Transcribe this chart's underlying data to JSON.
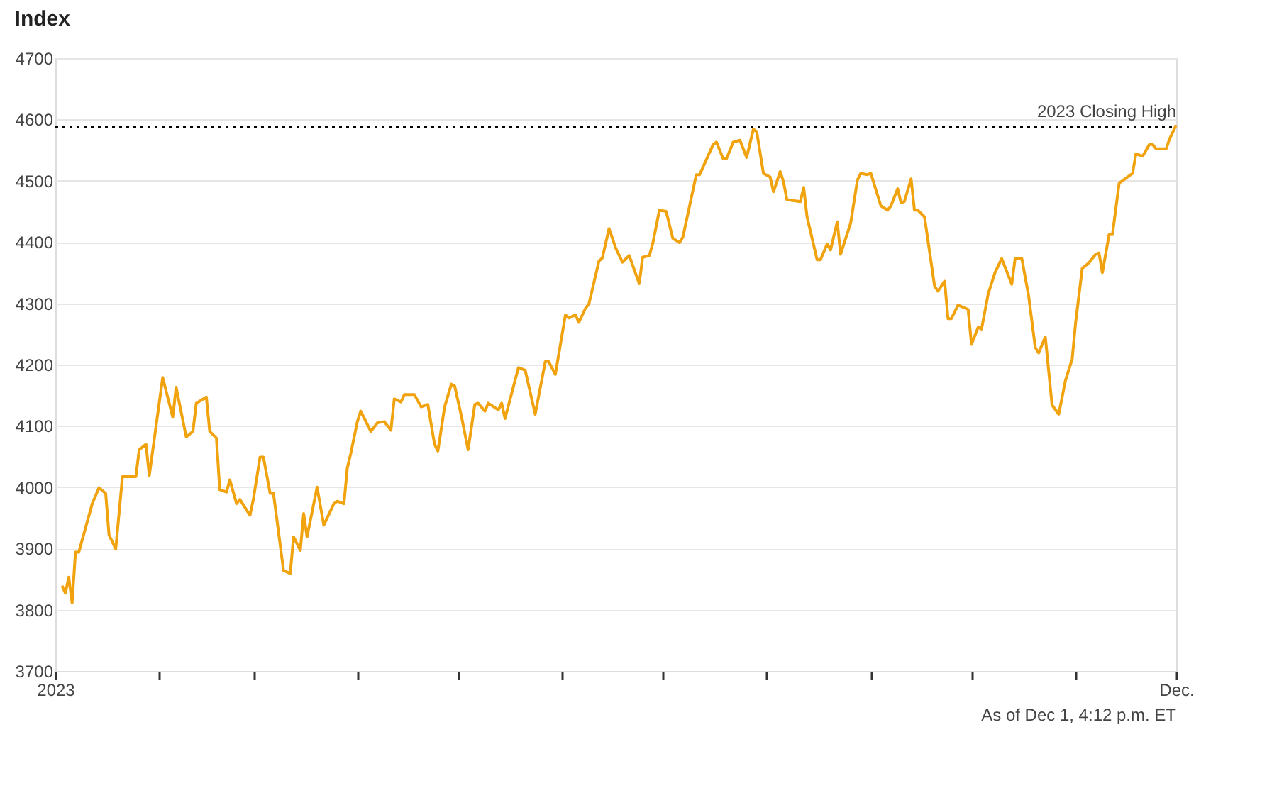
{
  "chart_data": {
    "type": "line",
    "title": "Index",
    "x": [
      "2023-01-03",
      "2023-01-04",
      "2023-01-05",
      "2023-01-06",
      "2023-01-07",
      "2023-01-08",
      "2023-01-12",
      "2023-01-14",
      "2023-01-16",
      "2023-01-17",
      "2023-01-19",
      "2023-01-21",
      "2023-01-25",
      "2023-01-26",
      "2023-01-28",
      "2023-01-29",
      "2023-02-02",
      "2023-02-05",
      "2023-02-06",
      "2023-02-09",
      "2023-02-11",
      "2023-02-12",
      "2023-02-15",
      "2023-02-16",
      "2023-02-18",
      "2023-02-19",
      "2023-02-21",
      "2023-02-22",
      "2023-02-24",
      "2023-02-25",
      "2023-02-28",
      "2023-03-01",
      "2023-03-03",
      "2023-03-04",
      "2023-03-06",
      "2023-03-07",
      "2023-03-10",
      "2023-03-12",
      "2023-03-13",
      "2023-03-15",
      "2023-03-16",
      "2023-03-17",
      "2023-03-20",
      "2023-03-22",
      "2023-03-25",
      "2023-03-26",
      "2023-03-28",
      "2023-03-29",
      "2023-03-30",
      "2023-04-01",
      "2023-04-02",
      "2023-04-05",
      "2023-04-07",
      "2023-04-09",
      "2023-04-11",
      "2023-04-12",
      "2023-04-14",
      "2023-04-15",
      "2023-04-18",
      "2023-04-20",
      "2023-04-22",
      "2023-04-24",
      "2023-04-25",
      "2023-04-27",
      "2023-04-29",
      "2023-04-30",
      "2023-05-02",
      "2023-05-04",
      "2023-05-06",
      "2023-05-07",
      "2023-05-09",
      "2023-05-10",
      "2023-05-13",
      "2023-05-14",
      "2023-05-15",
      "2023-05-19",
      "2023-05-21",
      "2023-05-24",
      "2023-05-27",
      "2023-05-28",
      "2023-05-30",
      "2023-06-02",
      "2023-06-03",
      "2023-06-05",
      "2023-06-06",
      "2023-06-08",
      "2023-06-09",
      "2023-06-12",
      "2023-06-13",
      "2023-06-15",
      "2023-06-17",
      "2023-06-19",
      "2023-06-21",
      "2023-06-24",
      "2023-06-25",
      "2023-06-27",
      "2023-06-28",
      "2023-06-30",
      "2023-07-02",
      "2023-07-04",
      "2023-07-06",
      "2023-07-07",
      "2023-07-11",
      "2023-07-12",
      "2023-07-16",
      "2023-07-17",
      "2023-07-19",
      "2023-07-20",
      "2023-07-22",
      "2023-07-24",
      "2023-07-26",
      "2023-07-28",
      "2023-07-29",
      "2023-07-31",
      "2023-08-02",
      "2023-08-03",
      "2023-08-05",
      "2023-08-06",
      "2023-08-07",
      "2023-08-11",
      "2023-08-12",
      "2023-08-13",
      "2023-08-16",
      "2023-08-17",
      "2023-08-19",
      "2023-08-20",
      "2023-08-22",
      "2023-08-23",
      "2023-08-26",
      "2023-08-28",
      "2023-08-29",
      "2023-08-31",
      "2023-09-01",
      "2023-09-04",
      "2023-09-06",
      "2023-09-07",
      "2023-09-09",
      "2023-09-10",
      "2023-09-11",
      "2023-09-13",
      "2023-09-14",
      "2023-09-15",
      "2023-09-17",
      "2023-09-20",
      "2023-09-21",
      "2023-09-23",
      "2023-09-24",
      "2023-09-25",
      "2023-09-27",
      "2023-09-30",
      "2023-10-01",
      "2023-10-03",
      "2023-10-04",
      "2023-10-06",
      "2023-10-08",
      "2023-10-10",
      "2023-10-13",
      "2023-10-14",
      "2023-10-16",
      "2023-10-18",
      "2023-10-20",
      "2023-10-21",
      "2023-10-23",
      "2023-10-25",
      "2023-10-27",
      "2023-10-29",
      "2023-10-31",
      "2023-11-01",
      "2023-11-03",
      "2023-11-05",
      "2023-11-07",
      "2023-11-08",
      "2023-11-09",
      "2023-11-11",
      "2023-11-12",
      "2023-11-14",
      "2023-11-18",
      "2023-11-19",
      "2023-11-21",
      "2023-11-23",
      "2023-11-24",
      "2023-11-25",
      "2023-11-28",
      "2023-11-29",
      "2023-12-01"
    ],
    "series": [
      {
        "color": "#f0a30f",
        "values": [
          3839,
          3827,
          3853,
          3811,
          3894,
          3894,
          3973,
          3999,
          3990,
          3922,
          3899,
          4017,
          4017,
          4061,
          4070,
          4019,
          4179,
          4114,
          4163,
          4082,
          4091,
          4137,
          4147,
          4091,
          4080,
          3996,
          3992,
          4012,
          3973,
          3980,
          3954,
          3980,
          4049,
          4049,
          3990,
          3990,
          3864,
          3859,
          3919,
          3897,
          3957,
          3919,
          4000,
          3938,
          3973,
          3977,
          3973,
          4031,
          4054,
          4107,
          4124,
          4091,
          4105,
          4107,
          4093,
          4144,
          4139,
          4151,
          4151,
          4131,
          4135,
          4070,
          4059,
          4131,
          4168,
          4165,
          4116,
          4061,
          4135,
          4137,
          4124,
          4137,
          4126,
          4137,
          4112,
          4195,
          4191,
          4119,
          4205,
          4205,
          4184,
          4281,
          4276,
          4281,
          4269,
          4292,
          4299,
          4369,
          4374,
          4422,
          4390,
          4367,
          4378,
          4332,
          4375,
          4378,
          4397,
          4452,
          4450,
          4406,
          4399,
          4408,
          4510,
          4510,
          4559,
          4563,
          4536,
          4536,
          4563,
          4566,
          4538,
          4584,
          4580,
          4512,
          4506,
          4482,
          4515,
          4498,
          4469,
          4466,
          4489,
          4441,
          4371,
          4371,
          4397,
          4387,
          4433,
          4380,
          4431,
          4501,
          4512,
          4510,
          4512,
          4459,
          4452,
          4459,
          4487,
          4464,
          4466,
          4503,
          4452,
          4452,
          4441,
          4328,
          4320,
          4336,
          4275,
          4275,
          4297,
          4290,
          4233,
          4261,
          4258,
          4316,
          4350,
          4373,
          4331,
          4373,
          4373,
          4313,
          4228,
          4219,
          4245,
          4134,
          4119,
          4174,
          4209,
          4267,
          4357,
          4366,
          4380,
          4382,
          4350,
          4412,
          4412,
          4496,
          4512,
          4544,
          4540,
          4559,
          4559,
          4552,
          4552,
          4568,
          4591
        ]
      }
    ],
    "xlim": [
      "2023-01-01",
      "2023-12-01"
    ],
    "xticks": [
      {
        "value": "2023-01-01",
        "label": "2023"
      },
      {
        "value": "2023-02-01",
        "label": null
      },
      {
        "value": "2023-03-01",
        "label": null
      },
      {
        "value": "2023-04-01",
        "label": null
      },
      {
        "value": "2023-05-01",
        "label": null
      },
      {
        "value": "2023-06-01",
        "label": null
      },
      {
        "value": "2023-07-01",
        "label": null
      },
      {
        "value": "2023-08-01",
        "label": null
      },
      {
        "value": "2023-09-01",
        "label": null
      },
      {
        "value": "2023-10-01",
        "label": null
      },
      {
        "value": "2023-11-01",
        "label": null
      },
      {
        "value": "2023-12-01",
        "label": "Dec."
      }
    ],
    "ylim": [
      3700,
      4700
    ],
    "yticks": [
      3700,
      3800,
      3900,
      4000,
      4100,
      4200,
      4300,
      4400,
      4500,
      4600,
      4700
    ],
    "grid": "y",
    "line_style": "solid",
    "ref_lines": [
      {
        "axis": "y",
        "value": 4588,
        "label": "2023 Closing High",
        "color": "#000000",
        "line_style": "dotted"
      }
    ],
    "annotations": [
      "As of Dec 1, 4:12 p.m. ET"
    ]
  }
}
